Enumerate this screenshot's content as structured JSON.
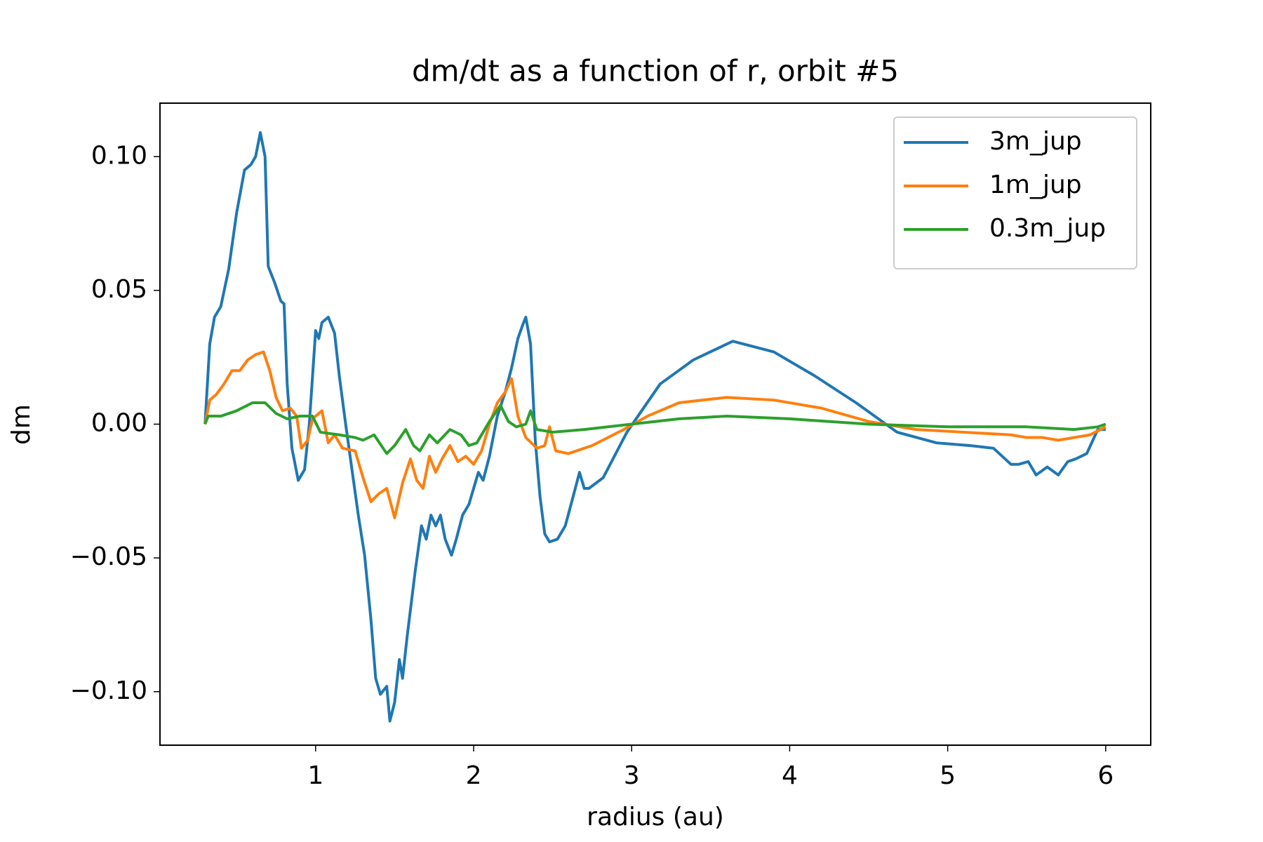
{
  "chart_data": {
    "type": "line",
    "title": "dm/dt as a function of r, orbit #5",
    "x_label": "radius (au)",
    "y_label": "dm",
    "xlim": [
      0.015,
      6.285
    ],
    "ylim": [
      -0.12,
      0.12
    ],
    "xticks": [
      1,
      2,
      3,
      4,
      5,
      6
    ],
    "yticks": [
      {
        "value": -0.1,
        "label": "−0.10"
      },
      {
        "value": -0.05,
        "label": "−0.05"
      },
      {
        "value": 0,
        "label": "0.00"
      },
      {
        "value": 0.05,
        "label": "0.05"
      },
      {
        "value": 0.1,
        "label": "0.10"
      }
    ],
    "legend": "upper right",
    "series": [
      {
        "name": "3m_jup",
        "color": "#1f77b4",
        "x": [
          0.3,
          0.33,
          0.36,
          0.4,
          0.45,
          0.5,
          0.55,
          0.59,
          0.62,
          0.65,
          0.68,
          0.7,
          0.74,
          0.78,
          0.8,
          0.82,
          0.85,
          0.89,
          0.93,
          0.96,
          1.0,
          1.02,
          1.04,
          1.08,
          1.12,
          1.15,
          1.19,
          1.23,
          1.27,
          1.31,
          1.35,
          1.38,
          1.41,
          1.45,
          1.47,
          1.5,
          1.53,
          1.55,
          1.58,
          1.63,
          1.67,
          1.7,
          1.73,
          1.76,
          1.79,
          1.82,
          1.86,
          1.89,
          1.93,
          1.97,
          2.0,
          2.03,
          2.06,
          2.1,
          2.15,
          2.2,
          2.24,
          2.28,
          2.31,
          2.33,
          2.36,
          2.39,
          2.42,
          2.45,
          2.48,
          2.53,
          2.58,
          2.63,
          2.67,
          2.7,
          2.73,
          2.82,
          2.97,
          3.18,
          3.39,
          3.64,
          3.9,
          4.16,
          4.42,
          4.68,
          4.93,
          5.14,
          5.29,
          5.4,
          5.45,
          5.51,
          5.56,
          5.63,
          5.7,
          5.76,
          5.81,
          5.88,
          5.95,
          6.0
        ],
        "values": [
          0.0,
          0.03,
          0.04,
          0.044,
          0.058,
          0.079,
          0.095,
          0.097,
          0.1,
          0.109,
          0.1,
          0.059,
          0.053,
          0.046,
          0.045,
          0.015,
          -0.009,
          -0.021,
          -0.017,
          0.0,
          0.035,
          0.032,
          0.038,
          0.04,
          0.034,
          0.018,
          0.0,
          -0.017,
          -0.034,
          -0.049,
          -0.073,
          -0.095,
          -0.101,
          -0.098,
          -0.111,
          -0.104,
          -0.088,
          -0.095,
          -0.079,
          -0.055,
          -0.038,
          -0.043,
          -0.034,
          -0.038,
          -0.034,
          -0.043,
          -0.049,
          -0.043,
          -0.034,
          -0.03,
          -0.024,
          -0.018,
          -0.021,
          -0.012,
          0.003,
          0.012,
          0.021,
          0.032,
          0.037,
          0.04,
          0.03,
          -0.006,
          -0.027,
          -0.041,
          -0.044,
          -0.043,
          -0.038,
          -0.027,
          -0.018,
          -0.024,
          -0.024,
          -0.02,
          -0.003,
          0.015,
          0.024,
          0.031,
          0.027,
          0.018,
          0.008,
          -0.003,
          -0.007,
          -0.008,
          -0.009,
          -0.015,
          -0.015,
          -0.014,
          -0.019,
          -0.016,
          -0.019,
          -0.014,
          -0.013,
          -0.011,
          -0.002,
          -0.002
        ]
      },
      {
        "name": "1m_jup",
        "color": "#ff7f0e",
        "x": [
          0.3,
          0.33,
          0.37,
          0.42,
          0.47,
          0.52,
          0.57,
          0.62,
          0.67,
          0.71,
          0.75,
          0.79,
          0.84,
          0.88,
          0.91,
          0.95,
          0.98,
          1.04,
          1.08,
          1.12,
          1.17,
          1.25,
          1.3,
          1.35,
          1.4,
          1.45,
          1.5,
          1.55,
          1.6,
          1.64,
          1.68,
          1.72,
          1.76,
          1.8,
          1.85,
          1.9,
          1.95,
          2.0,
          2.05,
          2.1,
          2.15,
          2.2,
          2.24,
          2.28,
          2.33,
          2.4,
          2.45,
          2.48,
          2.52,
          2.6,
          2.75,
          2.95,
          3.1,
          3.3,
          3.6,
          3.9,
          4.2,
          4.5,
          4.8,
          5.1,
          5.4,
          5.5,
          5.6,
          5.7,
          5.8,
          5.9,
          6.0
        ],
        "values": [
          0.0,
          0.009,
          0.011,
          0.015,
          0.02,
          0.02,
          0.024,
          0.026,
          0.027,
          0.02,
          0.01,
          0.005,
          0.006,
          0.003,
          -0.009,
          -0.006,
          0.002,
          0.005,
          -0.007,
          -0.004,
          -0.009,
          -0.01,
          -0.02,
          -0.029,
          -0.026,
          -0.024,
          -0.035,
          -0.022,
          -0.013,
          -0.021,
          -0.024,
          -0.012,
          -0.018,
          -0.013,
          -0.008,
          -0.014,
          -0.012,
          -0.015,
          -0.01,
          0.0,
          0.008,
          0.012,
          0.017,
          0.003,
          -0.005,
          -0.009,
          -0.008,
          -0.001,
          -0.01,
          -0.011,
          -0.008,
          -0.002,
          0.003,
          0.008,
          0.01,
          0.009,
          0.006,
          0.001,
          -0.002,
          -0.003,
          -0.004,
          -0.005,
          -0.005,
          -0.006,
          -0.005,
          -0.004,
          -0.001
        ]
      },
      {
        "name": "0.3m_jup",
        "color": "#2ca02c",
        "x": [
          0.3,
          0.32,
          0.4,
          0.5,
          0.6,
          0.68,
          0.75,
          0.82,
          0.9,
          0.98,
          1.03,
          1.15,
          1.25,
          1.3,
          1.37,
          1.45,
          1.5,
          1.57,
          1.62,
          1.66,
          1.72,
          1.77,
          1.85,
          1.92,
          1.97,
          2.02,
          2.1,
          2.17,
          2.22,
          2.27,
          2.33,
          2.36,
          2.4,
          2.5,
          2.7,
          3.0,
          3.3,
          3.6,
          4.0,
          4.5,
          5.0,
          5.5,
          5.8,
          5.95,
          6.0
        ],
        "values": [
          0.0,
          0.003,
          0.003,
          0.005,
          0.008,
          0.008,
          0.004,
          0.002,
          0.003,
          0.003,
          -0.003,
          -0.004,
          -0.005,
          -0.006,
          -0.004,
          -0.011,
          -0.008,
          -0.002,
          -0.008,
          -0.01,
          -0.004,
          -0.007,
          -0.002,
          -0.004,
          -0.008,
          -0.007,
          0.001,
          0.007,
          0.001,
          -0.001,
          0.0,
          0.005,
          -0.002,
          -0.003,
          -0.002,
          0.0,
          0.002,
          0.003,
          0.002,
          0.0,
          -0.001,
          -0.001,
          -0.002,
          -0.001,
          0.0
        ]
      }
    ]
  }
}
